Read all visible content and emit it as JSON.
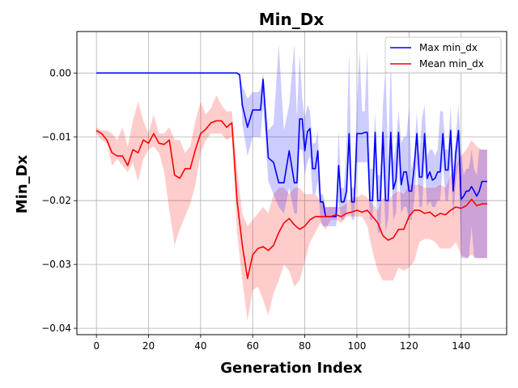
{
  "chart_data": {
    "type": "line",
    "title": "Min_Dx",
    "xlabel": "Generation Index",
    "ylabel": "Min_Dx",
    "xlim": [
      -7.5,
      157.5
    ],
    "ylim": [
      -0.041,
      0.0065
    ],
    "xticks": [
      0,
      20,
      40,
      60,
      80,
      100,
      120,
      140
    ],
    "yticks": [
      0.0,
      -0.01,
      -0.02,
      -0.03,
      -0.04
    ],
    "ytick_labels": [
      "0.00",
      "−0.01",
      "−0.02",
      "−0.03",
      "−0.04"
    ],
    "grid": true,
    "legend_position": "upper-right",
    "colors": {
      "max": "#0000ff",
      "mean": "#ff0000",
      "max_band": "#0000ff",
      "mean_band": "#ff0000"
    },
    "series": [
      {
        "name": "Max min_dx",
        "color": "#0000ff",
        "x": [
          0,
          10,
          20,
          30,
          40,
          50,
          54,
          55,
          56,
          58,
          60,
          62,
          63,
          64,
          66,
          68,
          70,
          72,
          74,
          76,
          77,
          78,
          79,
          80,
          81,
          82,
          83,
          84,
          85,
          86,
          87,
          88,
          90,
          92,
          93,
          94,
          95,
          96,
          97,
          98,
          99,
          100,
          101,
          102,
          103,
          104,
          105,
          106,
          107,
          108,
          109,
          110,
          111,
          112,
          113,
          114,
          115,
          116,
          117,
          118,
          119,
          120,
          121,
          122,
          123,
          124,
          125,
          126,
          127,
          128,
          129,
          130,
          131,
          132,
          133,
          134,
          135,
          136,
          137,
          138,
          139,
          140,
          141,
          142,
          143,
          144,
          145,
          146,
          147,
          148,
          149,
          150
        ],
        "y": [
          0,
          0,
          0,
          0,
          0,
          0,
          0,
          -0.0003,
          -0.005,
          -0.0085,
          -0.0058,
          -0.0058,
          -0.0058,
          -0.001,
          -0.0133,
          -0.014,
          -0.0172,
          -0.0172,
          -0.0122,
          -0.0172,
          -0.0172,
          -0.0072,
          -0.0072,
          -0.0122,
          -0.0092,
          -0.0087,
          -0.015,
          -0.015,
          -0.0122,
          -0.0202,
          -0.0202,
          -0.0225,
          -0.0225,
          -0.0225,
          -0.0145,
          -0.0202,
          -0.0202,
          -0.0185,
          -0.0095,
          -0.0202,
          -0.0202,
          -0.0095,
          -0.0095,
          -0.0095,
          -0.0093,
          -0.0093,
          -0.02,
          -0.02,
          -0.0093,
          -0.02,
          -0.02,
          -0.0093,
          -0.02,
          -0.02,
          -0.0093,
          -0.0182,
          -0.0168,
          -0.0093,
          -0.0175,
          -0.0155,
          -0.0155,
          -0.0185,
          -0.0185,
          -0.0147,
          -0.0095,
          -0.0163,
          -0.0163,
          -0.0095,
          -0.0165,
          -0.0155,
          -0.0168,
          -0.0165,
          -0.0155,
          -0.0155,
          -0.0095,
          -0.0152,
          -0.0152,
          -0.009,
          -0.0185,
          -0.0125,
          -0.009,
          -0.0198,
          -0.0193,
          -0.0185,
          -0.0185,
          -0.0178,
          -0.0185,
          -0.0193,
          -0.0185,
          -0.017,
          -0.017,
          -0.017
        ],
        "band_upper": [
          0,
          0,
          0,
          0,
          0,
          0,
          0,
          -0.0003,
          -0.002,
          -0.004,
          -0.003,
          -0.003,
          -0.0025,
          0.0,
          -0.009,
          -0.008,
          0.0045,
          -0.009,
          -0.005,
          0.0045,
          -0.007,
          0.003,
          -0.004,
          -0.007,
          -0.005,
          -0.006,
          -0.011,
          -0.011,
          -0.009,
          -0.019,
          -0.019,
          -0.021,
          -0.021,
          -0.021,
          -0.009,
          -0.018,
          -0.018,
          -0.012,
          0.0035,
          -0.018,
          -0.018,
          -0.005,
          0.0035,
          -0.006,
          -0.006,
          0.0035,
          -0.015,
          -0.015,
          -0.006,
          -0.016,
          -0.016,
          -0.005,
          0.001,
          -0.014,
          0.003,
          -0.014,
          -0.011,
          -0.006,
          -0.011,
          -0.01,
          -0.01,
          -0.0055,
          -0.015,
          -0.013,
          -0.006,
          -0.013,
          -0.007,
          -0.005,
          -0.013,
          -0.012,
          -0.012,
          -0.013,
          -0.012,
          -0.006,
          -0.006,
          -0.012,
          -0.012,
          -0.005,
          -0.015,
          -0.01,
          -0.005,
          -0.012,
          -0.016,
          -0.015,
          -0.015,
          -0.012,
          -0.015,
          -0.016,
          -0.012,
          -0.012,
          -0.012,
          -0.012
        ],
        "band_lower": [
          0,
          0,
          0,
          0,
          0,
          0,
          0,
          -0.0003,
          -0.008,
          -0.013,
          -0.01,
          -0.01,
          -0.01,
          -0.005,
          -0.017,
          -0.019,
          -0.021,
          -0.022,
          -0.018,
          -0.022,
          -0.022,
          -0.012,
          -0.012,
          -0.016,
          -0.014,
          -0.013,
          -0.019,
          -0.019,
          -0.017,
          -0.023,
          -0.024,
          -0.024,
          -0.024,
          -0.024,
          -0.02,
          -0.023,
          -0.023,
          -0.022,
          -0.014,
          -0.023,
          -0.023,
          -0.014,
          -0.014,
          -0.014,
          -0.014,
          -0.014,
          -0.023,
          -0.023,
          -0.014,
          -0.025,
          -0.025,
          -0.014,
          -0.025,
          -0.023,
          -0.014,
          -0.023,
          -0.022,
          -0.014,
          -0.022,
          -0.021,
          -0.021,
          -0.023,
          -0.023,
          -0.02,
          -0.014,
          -0.021,
          -0.021,
          -0.014,
          -0.021,
          -0.02,
          -0.021,
          -0.021,
          -0.02,
          -0.02,
          -0.014,
          -0.02,
          -0.02,
          -0.014,
          -0.023,
          -0.017,
          -0.014,
          -0.029,
          -0.029,
          -0.029,
          -0.029,
          -0.024,
          -0.029,
          -0.029,
          -0.029,
          -0.029,
          -0.029,
          -0.029
        ]
      },
      {
        "name": "Mean min_dx",
        "color": "#ff0000",
        "x": [
          0,
          2,
          4,
          6,
          8,
          10,
          12,
          14,
          16,
          18,
          20,
          22,
          24,
          26,
          28,
          30,
          32,
          34,
          36,
          38,
          40,
          42,
          44,
          46,
          48,
          50,
          52,
          54,
          56,
          58,
          60,
          62,
          64,
          66,
          68,
          70,
          72,
          74,
          76,
          78,
          80,
          82,
          84,
          86,
          88,
          90,
          92,
          94,
          96,
          98,
          100,
          102,
          104,
          106,
          108,
          110,
          112,
          114,
          116,
          118,
          120,
          122,
          124,
          126,
          128,
          130,
          132,
          134,
          136,
          138,
          140,
          142,
          144,
          146,
          148,
          150
        ],
        "y": [
          -0.009,
          -0.0095,
          -0.0105,
          -0.0125,
          -0.013,
          -0.013,
          -0.0145,
          -0.012,
          -0.0125,
          -0.0105,
          -0.011,
          -0.0095,
          -0.011,
          -0.0112,
          -0.0105,
          -0.016,
          -0.0165,
          -0.015,
          -0.015,
          -0.012,
          -0.0095,
          -0.0088,
          -0.0078,
          -0.0075,
          -0.0075,
          -0.0085,
          -0.0078,
          -0.02,
          -0.027,
          -0.0322,
          -0.0285,
          -0.0275,
          -0.0272,
          -0.0278,
          -0.027,
          -0.025,
          -0.0235,
          -0.0228,
          -0.0238,
          -0.0245,
          -0.024,
          -0.023,
          -0.0225,
          -0.0225,
          -0.0225,
          -0.0225,
          -0.0222,
          -0.0225,
          -0.022,
          -0.0218,
          -0.0215,
          -0.0218,
          -0.0215,
          -0.0225,
          -0.0235,
          -0.0255,
          -0.0262,
          -0.0258,
          -0.0245,
          -0.0245,
          -0.0225,
          -0.0215,
          -0.0215,
          -0.022,
          -0.0218,
          -0.0225,
          -0.022,
          -0.0222,
          -0.0215,
          -0.021,
          -0.0212,
          -0.0208,
          -0.0198,
          -0.0208,
          -0.0205,
          -0.0205
        ],
        "band_upper": [
          -0.0085,
          -0.009,
          -0.009,
          -0.0095,
          -0.0105,
          -0.0085,
          -0.0115,
          -0.0075,
          -0.0045,
          -0.0075,
          -0.0095,
          -0.0065,
          -0.0095,
          -0.0095,
          -0.0085,
          -0.0105,
          -0.0105,
          -0.0125,
          -0.0115,
          -0.0075,
          -0.0045,
          -0.0065,
          -0.0055,
          -0.0035,
          -0.005,
          -0.006,
          -0.006,
          -0.015,
          -0.022,
          -0.024,
          -0.023,
          -0.022,
          -0.021,
          -0.022,
          -0.019,
          -0.018,
          -0.018,
          -0.019,
          -0.018,
          -0.018,
          -0.019,
          -0.019,
          -0.019,
          -0.02,
          -0.021,
          -0.021,
          -0.021,
          -0.021,
          -0.0205,
          -0.0195,
          -0.0195,
          -0.019,
          -0.0195,
          -0.0205,
          -0.0215,
          -0.0195,
          -0.02,
          -0.019,
          -0.0185,
          -0.019,
          -0.0175,
          -0.0175,
          -0.0175,
          -0.018,
          -0.018,
          -0.018,
          -0.0175,
          -0.018,
          -0.016,
          -0.0145,
          -0.013,
          -0.012,
          -0.0105,
          -0.0115,
          -0.012,
          -0.012
        ],
        "band_lower": [
          -0.0095,
          -0.0105,
          -0.011,
          -0.0145,
          -0.0135,
          -0.0145,
          -0.0155,
          -0.014,
          -0.017,
          -0.0135,
          -0.012,
          -0.0115,
          -0.0125,
          -0.0155,
          -0.0215,
          -0.027,
          -0.0245,
          -0.0225,
          -0.0205,
          -0.0175,
          -0.0125,
          -0.0105,
          -0.0095,
          -0.0095,
          -0.0095,
          -0.0105,
          -0.01,
          -0.025,
          -0.0325,
          -0.0388,
          -0.034,
          -0.0335,
          -0.0355,
          -0.038,
          -0.0345,
          -0.0325,
          -0.03,
          -0.031,
          -0.0335,
          -0.0325,
          -0.0295,
          -0.0265,
          -0.025,
          -0.0235,
          -0.0245,
          -0.023,
          -0.023,
          -0.0235,
          -0.0225,
          -0.0225,
          -0.0225,
          -0.0225,
          -0.024,
          -0.028,
          -0.031,
          -0.0325,
          -0.0325,
          -0.0325,
          -0.0305,
          -0.031,
          -0.0305,
          -0.0295,
          -0.0265,
          -0.026,
          -0.026,
          -0.0265,
          -0.0275,
          -0.0275,
          -0.0275,
          -0.0265,
          -0.0285,
          -0.029,
          -0.0285,
          -0.029,
          -0.029,
          -0.029
        ]
      }
    ]
  }
}
